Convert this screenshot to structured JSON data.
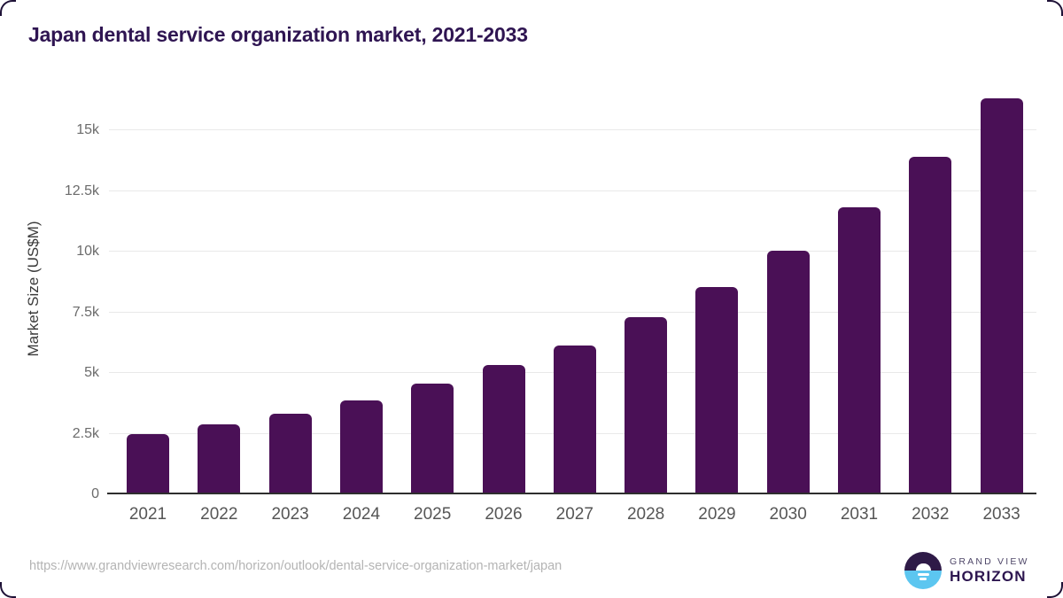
{
  "page": {
    "source_url": "https://www.grandviewresearch.com/horizon/outlook/dental-service-organization-market/japan"
  },
  "chart_data": {
    "type": "bar",
    "title": "Japan dental service organization market, 2021-2033",
    "categories": [
      "2021",
      "2022",
      "2023",
      "2024",
      "2025",
      "2026",
      "2027",
      "2028",
      "2029",
      "2030",
      "2031",
      "2032",
      "2033"
    ],
    "values": [
      2500,
      2900,
      3330,
      3880,
      4570,
      5340,
      6150,
      7320,
      8560,
      10060,
      11820,
      13900,
      16320
    ],
    "xlabel": "",
    "ylabel": "Market Size (US$M)",
    "ylim": [
      0,
      16730
    ],
    "yticks": [
      {
        "value": 0,
        "label": "0"
      },
      {
        "value": 2500,
        "label": "2.5k"
      },
      {
        "value": 5000,
        "label": "5k"
      },
      {
        "value": 7500,
        "label": "7.5k"
      },
      {
        "value": 10000,
        "label": "10k"
      },
      {
        "value": 12500,
        "label": "12.5k"
      },
      {
        "value": 15000,
        "label": "15k"
      }
    ],
    "grid": "horizontal",
    "legend": "none",
    "bar_color": "#4a1056"
  },
  "logo": {
    "line1": "GRAND VIEW",
    "line2": "HORIZON"
  },
  "colors": {
    "title": "#2f1552",
    "bar": "#4a1056",
    "gridline": "#e9e9e9",
    "axis": "#2e2e2e",
    "logo_dark": "#2e1a47",
    "logo_blue": "#5cc6f0"
  }
}
